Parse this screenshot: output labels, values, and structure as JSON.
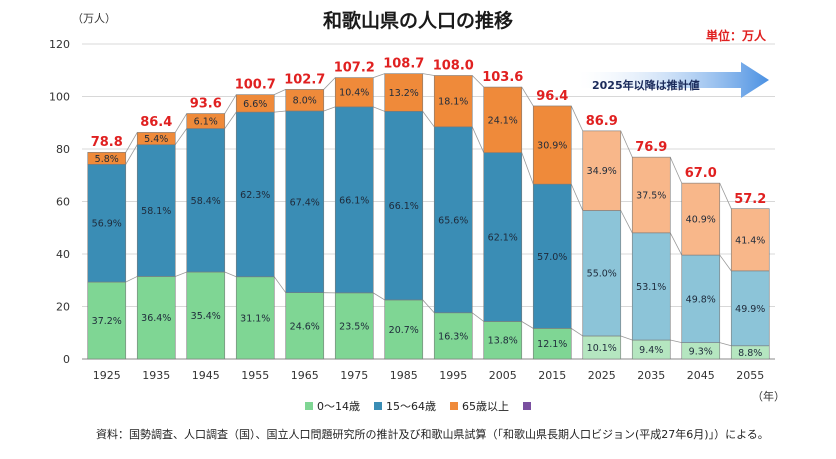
{
  "title": "和歌山県の人口の推移",
  "unit_note": "単位：万人",
  "y_unit": "（万人）",
  "x_unit": "（年）",
  "estimate_note": "2025年以降は推計値",
  "source": "資料：国勢調査、人口調査（国）、国立人口問題研究所の推計及び和歌山県試算（「和歌山県長期人口ビジョン(平成27年6月)」）による。",
  "colors": {
    "age0_14": "#7fd694",
    "age15_64": "#3a8db5",
    "age65": "#ef8a3a",
    "age0_14_est": "#b5e6c0",
    "age15_64_est": "#8cc4d8",
    "age65_est": "#f8b78a",
    "total_label": "#e02020",
    "legend_extra": "#7a4fa0",
    "arrow": "#4a90e2"
  },
  "chart_data": {
    "type": "bar",
    "stacked": true,
    "categories": [
      "1925",
      "1935",
      "1945",
      "1955",
      "1965",
      "1975",
      "1985",
      "1995",
      "2005",
      "2015",
      "2025",
      "2035",
      "2045",
      "2055"
    ],
    "totals": [
      78.8,
      86.4,
      93.6,
      100.7,
      102.7,
      107.2,
      108.7,
      108.0,
      103.6,
      96.4,
      86.9,
      76.9,
      67.0,
      57.2
    ],
    "total_labels": [
      "78.8",
      "86.4",
      "93.6",
      "100.7",
      "102.7",
      "107.2",
      "108.7",
      "108.0",
      "103.6",
      "96.4",
      "86.9",
      "76.9",
      "67.0",
      "57.2"
    ],
    "estimate_from_index": 10,
    "series": [
      {
        "name": "0〜14歳",
        "percent_labels": [
          "37.2%",
          "36.4%",
          "35.4%",
          "31.1%",
          "24.6%",
          "23.5%",
          "20.7%",
          "16.3%",
          "13.8%",
          "12.1%",
          "10.1%",
          "9.4%",
          "9.3%",
          "8.8%"
        ],
        "values_percent": [
          37.2,
          36.4,
          35.4,
          31.1,
          24.6,
          23.5,
          20.7,
          16.3,
          13.8,
          12.1,
          10.1,
          9.4,
          9.3,
          8.8
        ]
      },
      {
        "name": "15〜64歳",
        "percent_labels": [
          "56.9%",
          "58.1%",
          "58.4%",
          "62.3%",
          "67.4%",
          "66.1%",
          "66.1%",
          "65.6%",
          "62.1%",
          "57.0%",
          "55.0%",
          "53.1%",
          "49.8%",
          "49.9%"
        ],
        "values_percent": [
          56.9,
          58.1,
          58.4,
          62.3,
          67.4,
          66.1,
          66.1,
          65.6,
          62.1,
          57.0,
          55.0,
          53.1,
          49.8,
          49.9
        ]
      },
      {
        "name": "65歳以上",
        "percent_labels": [
          "5.8%",
          "5.4%",
          "6.1%",
          "6.6%",
          "8.0%",
          "10.4%",
          "13.2%",
          "18.1%",
          "24.1%",
          "30.9%",
          "34.9%",
          "37.5%",
          "40.9%",
          "41.4%"
        ],
        "values_percent": [
          5.8,
          5.4,
          6.1,
          6.6,
          8.0,
          10.4,
          13.2,
          18.1,
          24.1,
          30.9,
          34.9,
          37.5,
          40.9,
          41.4
        ]
      }
    ],
    "ylim": [
      0,
      120
    ],
    "yticks": [
      "0",
      "20",
      "40",
      "60",
      "80",
      "100",
      "120"
    ],
    "grid": true,
    "legend_position": "bottom"
  }
}
